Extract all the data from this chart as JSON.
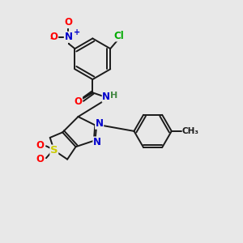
{
  "bg_color": "#e8e8e8",
  "bond_color": "#1a1a1a",
  "atom_colors": {
    "O": "#ff0000",
    "N": "#0000cc",
    "Cl": "#00aa00",
    "S": "#cccc00",
    "H": "#448844",
    "C": "#1a1a1a"
  },
  "lw": 1.4
}
